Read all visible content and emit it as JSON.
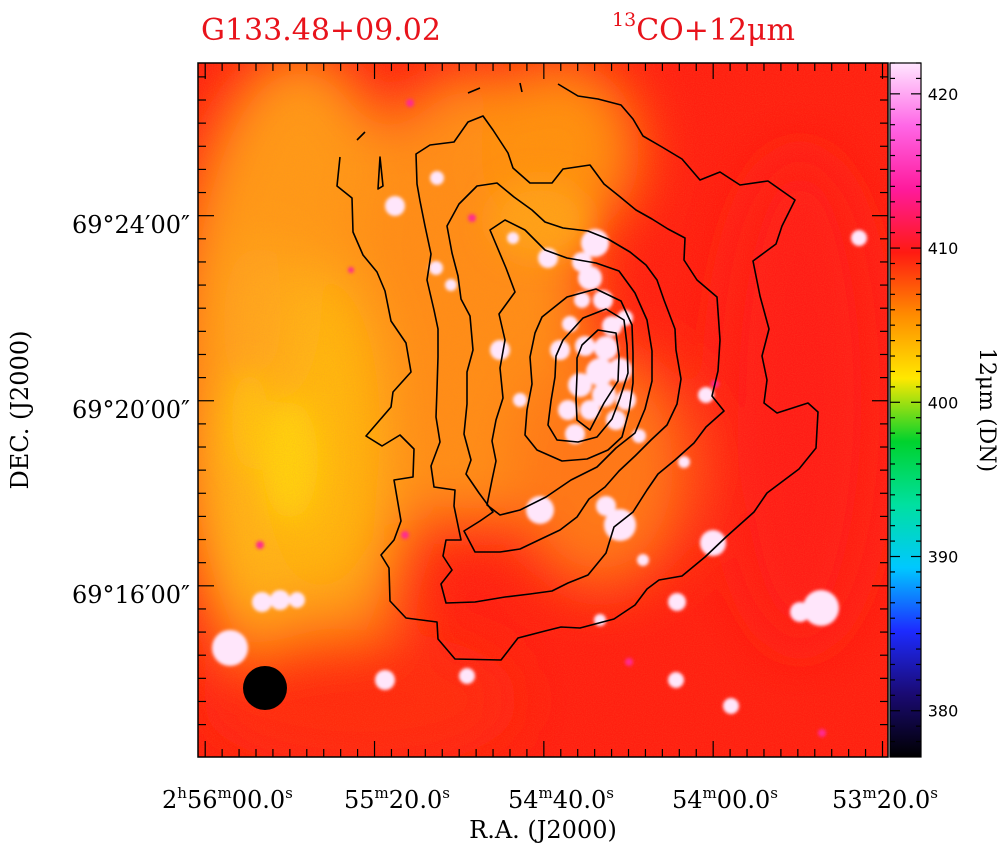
{
  "figure": {
    "source_name": "G133.48+09.02",
    "overlay_label_sup": "13",
    "overlay_label_main": "CO+12μm"
  },
  "chart_data": {
    "type": "heatmap",
    "title": "G133.48+09.02",
    "subtitle": "13CO+12μm",
    "xlabel": "R.A.  (J2000)",
    "ylabel": "DEC.  (J2000)",
    "x_ticks": [
      {
        "h": "2",
        "hs": "h",
        "m": "56",
        "ms": "m",
        "s": "00.0",
        "ss": "s",
        "label": "2h56m00.0s"
      },
      {
        "m": "55",
        "ms": "m",
        "s": "20.0",
        "ss": "s",
        "label": "55m20.0s"
      },
      {
        "m": "54",
        "ms": "m",
        "s": "40.0",
        "ss": "s",
        "label": "54m40.0s"
      },
      {
        "m": "54",
        "ms": "m",
        "s": "00.0",
        "ss": "s",
        "label": "54m00.0s"
      },
      {
        "m": "53",
        "ms": "m",
        "s": "20.0",
        "ss": "s",
        "label": "53m20.0s"
      }
    ],
    "x_tick_ra_seconds": [
      10560,
      10520,
      10480,
      10440,
      10400
    ],
    "y_ticks": [
      "69°24′00″",
      "69°20′00″",
      "69°16′00″"
    ],
    "y_tick_dec_arcmin": [
      24,
      20,
      16
    ],
    "ra_range_seconds": [
      10561.7,
      10398.7
    ],
    "dec_range_arcmin": [
      12.3,
      27.3
    ],
    "colorbar": {
      "label": "12μm (DN)",
      "range": [
        377,
        422
      ],
      "ticks": [
        420,
        410,
        400,
        390,
        380
      ],
      "colormap": [
        "#000000",
        "#1a0a73",
        "#1d2bff",
        "#00c8ff",
        "#00e0a0",
        "#00d22d",
        "#ffe800",
        "#ff8c00",
        "#ff1a12",
        "#ff1a9c",
        "#ff66e6",
        "#ffe6ff"
      ]
    },
    "contours": {
      "tracer": "13CO",
      "levels": 7,
      "color": "#000000"
    },
    "beam": "filled black circle, lower-left",
    "background_colors": {
      "low": "#ff1a10",
      "mid": "#ff8c18",
      "high": "#ffc800",
      "sources": "#ffe6fb"
    }
  }
}
